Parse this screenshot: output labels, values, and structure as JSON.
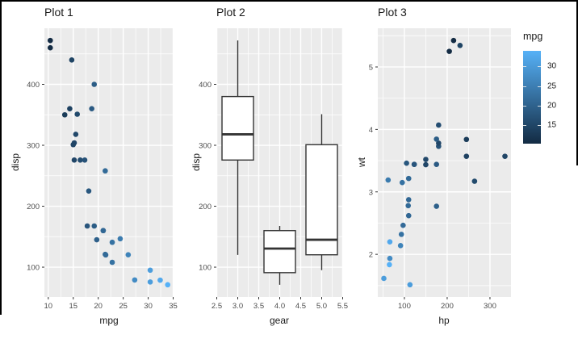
{
  "theme": {
    "background": "#ffffff",
    "frame_color": "#000000",
    "panel_bg": "#ebebeb",
    "grid_color": "#ffffff",
    "tick_color": "#333333",
    "tick_label_color": "#4d4d4d",
    "text_color": "#1a1a1a",
    "box_fill": "#ffffff",
    "box_stroke": "#333333",
    "gradient_low": "#132b43",
    "gradient_high": "#56b1f7"
  },
  "legend": {
    "title": "mpg",
    "domain": [
      10.4,
      33.9
    ],
    "tick_values": [
      30,
      25,
      20,
      15
    ],
    "tick_labels": [
      "30",
      "25",
      "20",
      "15"
    ]
  },
  "chart_data": [
    {
      "type": "scatter",
      "title": "Plot 1",
      "xlabel": "mpg",
      "ylabel": "disp",
      "xdomain": [
        9.225,
        35.075
      ],
      "ydomain": [
        51.05,
        492.05
      ],
      "xticks": [
        10,
        15,
        20,
        25,
        30,
        35
      ],
      "xtick_labels": [
        "10",
        "15",
        "20",
        "25",
        "30",
        "35"
      ],
      "yticks": [
        100,
        200,
        300,
        400
      ],
      "ytick_labels": [
        "100",
        "200",
        "300",
        "400"
      ],
      "xminor": [
        12.5,
        17.5,
        22.5,
        27.5,
        32.5
      ],
      "yminor": [
        150,
        250,
        350,
        450
      ],
      "color_by": "mpg",
      "points": [
        [
          21.0,
          160.0,
          21.0
        ],
        [
          21.0,
          160.0,
          21.0
        ],
        [
          22.8,
          108.0,
          22.8
        ],
        [
          21.4,
          258.0,
          21.4
        ],
        [
          18.7,
          360.0,
          18.7
        ],
        [
          18.1,
          225.0,
          18.1
        ],
        [
          14.3,
          360.0,
          14.3
        ],
        [
          24.4,
          146.7,
          24.4
        ],
        [
          22.8,
          140.8,
          22.8
        ],
        [
          19.2,
          167.6,
          19.2
        ],
        [
          17.8,
          167.6,
          17.8
        ],
        [
          16.4,
          275.8,
          16.4
        ],
        [
          17.3,
          275.8,
          17.3
        ],
        [
          15.2,
          275.8,
          15.2
        ],
        [
          10.4,
          472.0,
          10.4
        ],
        [
          10.4,
          460.0,
          10.4
        ],
        [
          14.7,
          440.0,
          14.7
        ],
        [
          32.4,
          78.7,
          32.4
        ],
        [
          30.4,
          75.7,
          30.4
        ],
        [
          33.9,
          71.1,
          33.9
        ],
        [
          21.5,
          120.1,
          21.5
        ],
        [
          15.5,
          318.0,
          15.5
        ],
        [
          15.2,
          304.0,
          15.2
        ],
        [
          13.3,
          350.0,
          13.3
        ],
        [
          19.2,
          400.0,
          19.2
        ],
        [
          27.3,
          79.0,
          27.3
        ],
        [
          26.0,
          120.3,
          26.0
        ],
        [
          30.4,
          95.1,
          30.4
        ],
        [
          15.8,
          351.0,
          15.8
        ],
        [
          19.7,
          145.0,
          19.7
        ],
        [
          15.0,
          301.0,
          15.0
        ],
        [
          21.4,
          121.0,
          21.4
        ]
      ]
    },
    {
      "type": "boxplot",
      "title": "Plot 2",
      "xlabel": "gear",
      "ylabel": "disp",
      "xdomain": [
        2.49,
        5.51
      ],
      "ydomain": [
        51.05,
        492.05
      ],
      "xticks": [
        2.5,
        3.0,
        3.5,
        4.0,
        4.5,
        5.0,
        5.5
      ],
      "xtick_labels": [
        "2.5",
        "3.0",
        "3.5",
        "4.0",
        "4.5",
        "5.0",
        "5.5"
      ],
      "yticks": [
        100,
        200,
        300,
        400
      ],
      "ytick_labels": [
        "100",
        "200",
        "300",
        "400"
      ],
      "xminor": [
        2.75,
        3.25,
        3.75,
        4.25,
        4.75,
        5.25
      ],
      "yminor": [
        150,
        250,
        350,
        450
      ],
      "box_width": 0.75,
      "boxes": [
        {
          "x": 3,
          "min": 120.1,
          "q1": 275.8,
          "median": 318.0,
          "q3": 380.0,
          "max": 472.0
        },
        {
          "x": 4,
          "min": 71.1,
          "q1": 91.0,
          "median": 130.55,
          "q3": 160.0,
          "max": 167.6
        },
        {
          "x": 5,
          "min": 95.1,
          "q1": 120.3,
          "median": 145.0,
          "q3": 301.0,
          "max": 351.0
        }
      ]
    },
    {
      "type": "scatter",
      "title": "Plot 3",
      "xlabel": "hp",
      "ylabel": "wt",
      "xdomain": [
        37.85,
        349.15
      ],
      "ydomain": [
        1.317,
        5.62
      ],
      "xticks": [
        100,
        200,
        300
      ],
      "xtick_labels": [
        "100",
        "200",
        "300"
      ],
      "yticks": [
        2,
        3,
        4,
        5
      ],
      "ytick_labels": [
        "2",
        "3",
        "4",
        "5"
      ],
      "xminor": [
        50,
        150,
        250
      ],
      "yminor": [
        1.5,
        2.5,
        3.5,
        4.5,
        5.5
      ],
      "color_by": "mpg",
      "points": [
        [
          110,
          2.62,
          21.0
        ],
        [
          110,
          2.875,
          21.0
        ],
        [
          93,
          2.32,
          22.8
        ],
        [
          110,
          3.215,
          21.4
        ],
        [
          175,
          3.44,
          18.7
        ],
        [
          105,
          3.46,
          18.1
        ],
        [
          245,
          3.57,
          14.3
        ],
        [
          62,
          3.19,
          24.4
        ],
        [
          95,
          3.15,
          22.8
        ],
        [
          123,
          3.44,
          19.2
        ],
        [
          123,
          3.44,
          17.8
        ],
        [
          180,
          4.07,
          16.4
        ],
        [
          180,
          3.73,
          17.3
        ],
        [
          180,
          3.78,
          15.2
        ],
        [
          205,
          5.25,
          10.4
        ],
        [
          215,
          5.424,
          10.4
        ],
        [
          230,
          5.345,
          14.7
        ],
        [
          66,
          2.2,
          32.4
        ],
        [
          52,
          1.615,
          30.4
        ],
        [
          65,
          1.835,
          33.9
        ],
        [
          97,
          2.465,
          21.5
        ],
        [
          150,
          3.52,
          15.5
        ],
        [
          150,
          3.435,
          15.2
        ],
        [
          245,
          3.84,
          13.3
        ],
        [
          175,
          3.845,
          19.2
        ],
        [
          66,
          1.935,
          27.3
        ],
        [
          91,
          2.14,
          26.0
        ],
        [
          113,
          1.513,
          30.4
        ],
        [
          264,
          3.17,
          15.8
        ],
        [
          175,
          2.77,
          19.7
        ],
        [
          335,
          3.57,
          15.0
        ],
        [
          109,
          2.78,
          21.4
        ]
      ]
    }
  ]
}
